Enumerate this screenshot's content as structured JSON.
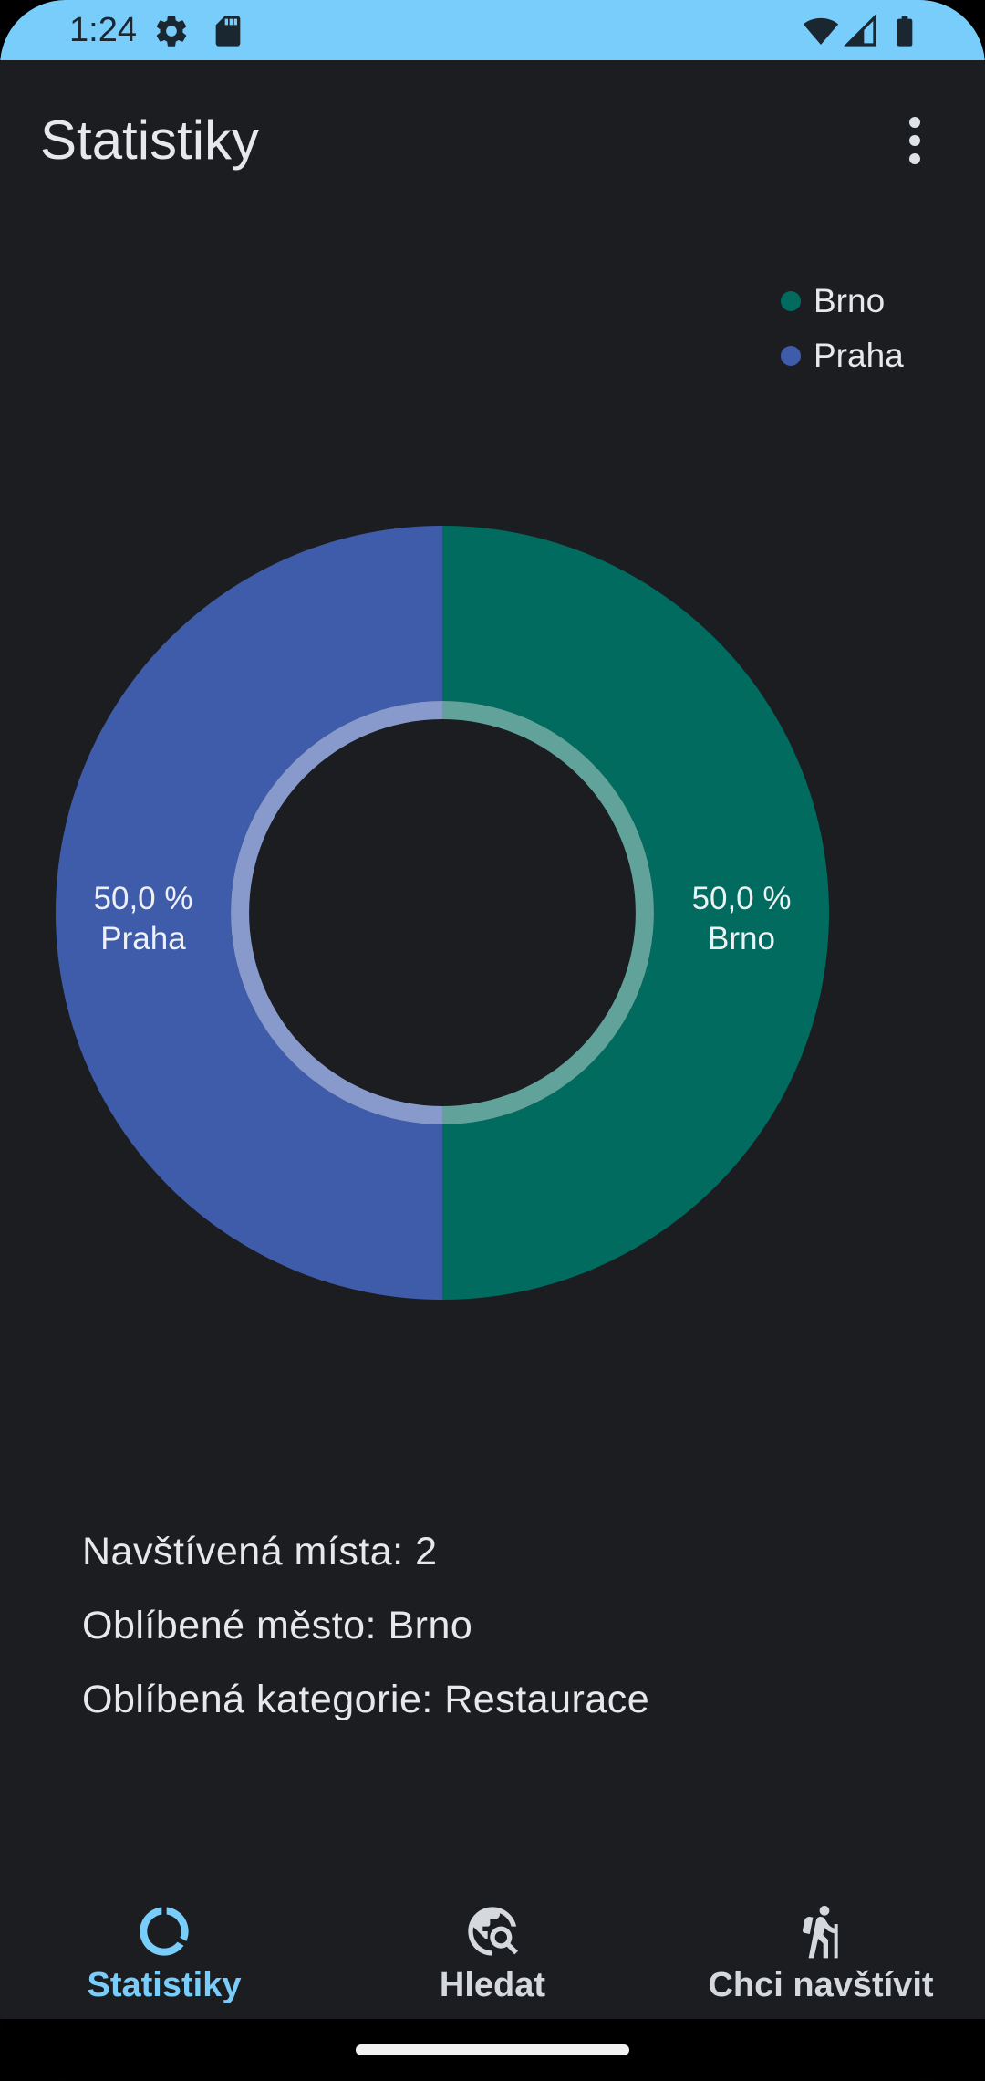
{
  "status_bar": {
    "time": "1:24",
    "icons_left": [
      "settings-icon",
      "sd-card-icon"
    ],
    "icons_right": [
      "wifi-icon",
      "signal-icon",
      "battery-icon"
    ],
    "background": "#79cdfb"
  },
  "app_bar": {
    "title": "Statistiky",
    "menu_icon": "more-vert-icon"
  },
  "chart_data": {
    "type": "pie",
    "donut": true,
    "title": "",
    "categories": [
      "Brno",
      "Praha"
    ],
    "values": [
      50.0,
      50.0
    ],
    "colors": [
      "#006b5e",
      "#3f5cab"
    ],
    "slice_labels": [
      {
        "percent": "50,0 %",
        "name": "Brno"
      },
      {
        "percent": "50,0 %",
        "name": "Praha"
      }
    ],
    "legend": {
      "placement": "top-right",
      "entries": [
        "Brno",
        "Praha"
      ]
    }
  },
  "stats": {
    "visited": "Navštívená místa: 2",
    "favorite_city": "Oblíbené město: Brno",
    "favorite_category": "Oblíbená kategorie: Restaurace"
  },
  "bottom_nav": {
    "items": [
      {
        "label": "Statistiky",
        "icon": "donut-chart-icon",
        "active": true
      },
      {
        "label": "Hledat",
        "icon": "travel-explore-icon",
        "active": false
      },
      {
        "label": "Chci navštívit",
        "icon": "hiking-icon",
        "active": false
      }
    ],
    "active_color": "#79cdfb",
    "inactive_color": "#d5d8dd"
  }
}
